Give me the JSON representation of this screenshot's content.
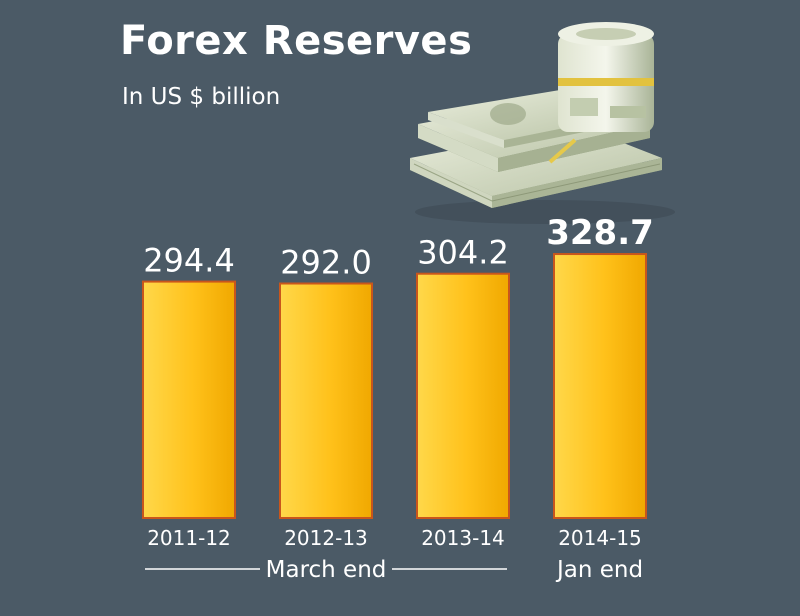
{
  "header": {
    "title": "Forex Reserves",
    "subtitle": "In US $ billion"
  },
  "chart_data": {
    "type": "bar",
    "categories": [
      "2011-12",
      "2012-13",
      "2013-14",
      "2014-15"
    ],
    "values": [
      294.4,
      292.0,
      304.2,
      328.7
    ],
    "value_labels": [
      "294.4",
      "292.0",
      "304.2",
      "328.7"
    ],
    "title": "Forex Reserves",
    "subtitle": "In US $ billion",
    "highlight_index": 3,
    "group_labels": [
      {
        "label": "March end",
        "categories": [
          "2011-12",
          "2012-13",
          "2013-14"
        ]
      },
      {
        "label": "Jan end",
        "categories": [
          "2014-15"
        ]
      }
    ],
    "ylim": [
      0,
      330
    ],
    "grid": false,
    "colors": {
      "bar_top": "#ffd84a",
      "bar_mid": "#ffc11a",
      "bar_bottom": "#f0a800",
      "bar_border": "#c9561c"
    }
  },
  "decorations": {
    "image_icon": "money-bundle-icon"
  }
}
